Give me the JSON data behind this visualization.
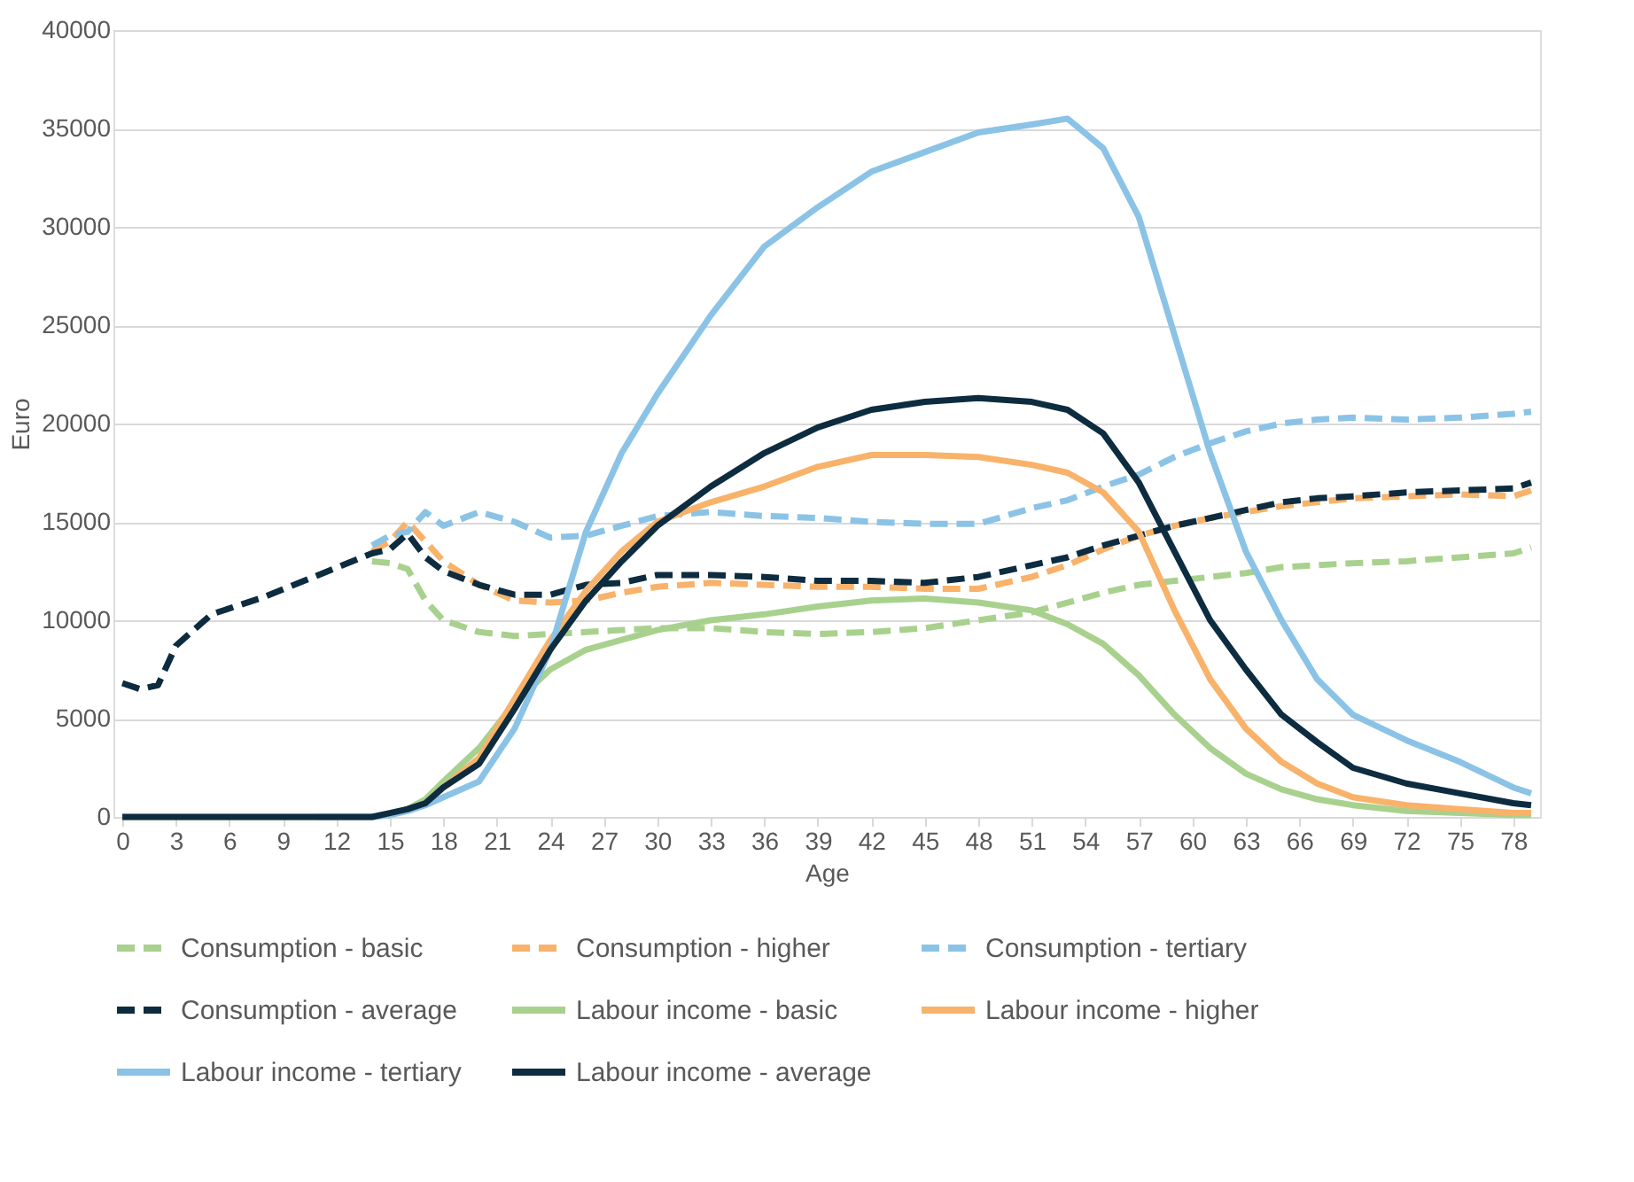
{
  "chart_data": {
    "type": "line",
    "xlabel": "Age",
    "ylabel": "Euro",
    "x": [
      0,
      1,
      2,
      3,
      5,
      8,
      11,
      14,
      15,
      16,
      17,
      18,
      20,
      22,
      24,
      26,
      28,
      30,
      33,
      36,
      39,
      42,
      45,
      48,
      51,
      53,
      55,
      57,
      59,
      61,
      63,
      65,
      67,
      69,
      72,
      75,
      78,
      79
    ],
    "xlim": [
      -0.5,
      79.5
    ],
    "xticks": [
      0,
      3,
      6,
      9,
      12,
      15,
      18,
      21,
      24,
      27,
      30,
      33,
      36,
      39,
      42,
      45,
      48,
      51,
      54,
      57,
      60,
      63,
      66,
      69,
      72,
      75,
      78
    ],
    "ylim": [
      0,
      40000
    ],
    "yticks": [
      0,
      5000,
      10000,
      15000,
      20000,
      25000,
      30000,
      35000,
      40000
    ],
    "grid": "y",
    "legend": "bottom",
    "marker": "none",
    "series": [
      {
        "name": "Consumption - basic",
        "color": "#a9d18e",
        "line_style": "dashed",
        "values": [
          null,
          null,
          null,
          null,
          null,
          null,
          null,
          13000,
          12900,
          12600,
          11000,
          10000,
          9400,
          9200,
          9300,
          9400,
          9500,
          9600,
          9600,
          9400,
          9300,
          9400,
          9600,
          10000,
          10400,
          10900,
          11400,
          11800,
          12000,
          12200,
          12400,
          12700,
          12800,
          12900,
          13000,
          13200,
          13400,
          13700
        ]
      },
      {
        "name": "Consumption - higher",
        "color": "#f8b26a",
        "line_style": "dashed",
        "values": [
          null,
          null,
          null,
          null,
          null,
          null,
          null,
          13500,
          14000,
          15000,
          14000,
          13000,
          11800,
          11000,
          10900,
          11000,
          11400,
          11700,
          11900,
          11800,
          11700,
          11700,
          11600,
          11600,
          12200,
          12800,
          13600,
          14300,
          14800,
          15200,
          15500,
          15800,
          16000,
          16200,
          16300,
          16400,
          16300,
          16600
        ]
      },
      {
        "name": "Consumption - tertiary",
        "color": "#8bc3e6",
        "line_style": "dashed",
        "values": [
          null,
          null,
          null,
          null,
          null,
          null,
          null,
          13800,
          14300,
          14500,
          15500,
          14800,
          15500,
          15000,
          14200,
          14300,
          14800,
          15300,
          15500,
          15300,
          15200,
          15000,
          14900,
          14900,
          15700,
          16100,
          16800,
          17400,
          18300,
          19000,
          19600,
          20000,
          20200,
          20300,
          20200,
          20300,
          20500,
          20600
        ]
      },
      {
        "name": "Consumption - average",
        "color": "#0d2c40",
        "line_style": "dashed",
        "values": [
          6800,
          6500,
          6700,
          8700,
          10300,
          11200,
          12300,
          13400,
          13600,
          14400,
          13200,
          12500,
          11800,
          11300,
          11300,
          11800,
          11900,
          12300,
          12300,
          12200,
          12000,
          12000,
          11900,
          12200,
          12800,
          13200,
          13800,
          14300,
          14800,
          15200,
          15600,
          16000,
          16200,
          16300,
          16500,
          16600,
          16700,
          17000
        ]
      },
      {
        "name": "Labour income - basic",
        "color": "#a9d18e",
        "line_style": "solid",
        "values": [
          0,
          0,
          0,
          0,
          0,
          0,
          0,
          0,
          100,
          400,
          900,
          1800,
          3500,
          5800,
          7500,
          8500,
          9000,
          9500,
          10000,
          10300,
          10700,
          11000,
          11100,
          10900,
          10500,
          9800,
          8800,
          7200,
          5200,
          3500,
          2200,
          1400,
          900,
          600,
          300,
          200,
          100,
          100
        ]
      },
      {
        "name": "Labour income - higher",
        "color": "#f8b26a",
        "line_style": "solid",
        "values": [
          null,
          null,
          null,
          null,
          null,
          null,
          null,
          null,
          null,
          null,
          700,
          1500,
          3000,
          6000,
          9000,
          11500,
          13500,
          15000,
          16000,
          16800,
          17800,
          18400,
          18400,
          18300,
          17900,
          17500,
          16500,
          14500,
          10500,
          7000,
          4500,
          2800,
          1700,
          1000,
          600,
          400,
          200,
          200
        ]
      },
      {
        "name": "Labour income - tertiary",
        "color": "#8bc3e6",
        "line_style": "solid",
        "values": [
          null,
          null,
          null,
          null,
          null,
          null,
          0,
          0,
          100,
          300,
          600,
          1000,
          1800,
          4500,
          8500,
          14500,
          18500,
          21500,
          25500,
          29000,
          31000,
          32800,
          33800,
          34800,
          35200,
          35500,
          34000,
          30500,
          24500,
          18500,
          13500,
          10000,
          7000,
          5200,
          3900,
          2800,
          1500,
          1200
        ]
      },
      {
        "name": "Labour income - average",
        "color": "#0d2c40",
        "line_style": "solid",
        "values": [
          0,
          0,
          0,
          0,
          0,
          0,
          0,
          0,
          200,
          400,
          700,
          1500,
          2700,
          5500,
          8500,
          11000,
          13000,
          14800,
          16800,
          18500,
          19800,
          20700,
          21100,
          21300,
          21100,
          20700,
          19500,
          17000,
          13500,
          10000,
          7500,
          5200,
          3800,
          2500,
          1700,
          1200,
          700,
          600
        ]
      }
    ]
  }
}
